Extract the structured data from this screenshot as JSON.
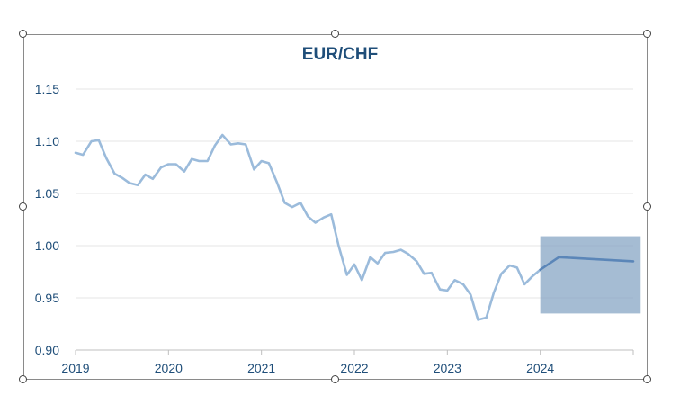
{
  "chart_data": {
    "type": "line",
    "title": "EUR/CHF",
    "xlabel": "",
    "ylabel": "",
    "x_ticks": [
      "2019",
      "2020",
      "2021",
      "2022",
      "2023",
      "2024"
    ],
    "y_ticks": [
      "0.90",
      "0.95",
      "1.00",
      "1.05",
      "1.10",
      "1.15"
    ],
    "xlim": [
      2019.0,
      2025.0
    ],
    "ylim": [
      0.9,
      1.15
    ],
    "grid": true,
    "colors": {
      "history_line": "#9bbbdb",
      "forecast_line": "#5b86b8",
      "forecast_box": "#7f9fc1",
      "axis_text": "#1f4e79",
      "grid": "#e6e6e6"
    },
    "series": [
      {
        "role": "history",
        "x": [
          2019.0,
          2019.08,
          2019.17,
          2019.25,
          2019.33,
          2019.42,
          2019.5,
          2019.58,
          2019.67,
          2019.75,
          2019.83,
          2019.92,
          2020.0,
          2020.08,
          2020.17,
          2020.25,
          2020.33,
          2020.42,
          2020.5,
          2020.58,
          2020.67,
          2020.75,
          2020.83,
          2020.92,
          2021.0,
          2021.08,
          2021.17,
          2021.25,
          2021.33,
          2021.42,
          2021.5,
          2021.58,
          2021.67,
          2021.75,
          2021.83,
          2021.92,
          2022.0,
          2022.08,
          2022.17,
          2022.25,
          2022.33,
          2022.42,
          2022.5,
          2022.58,
          2022.67,
          2022.75,
          2022.83,
          2022.92,
          2023.0,
          2023.08,
          2023.17,
          2023.25,
          2023.33,
          2023.42,
          2023.5,
          2023.58,
          2023.67,
          2023.75,
          2023.83,
          2023.92,
          2024.0
        ],
        "values": [
          1.089,
          1.087,
          1.1,
          1.101,
          1.084,
          1.069,
          1.065,
          1.06,
          1.058,
          1.068,
          1.064,
          1.075,
          1.078,
          1.078,
          1.071,
          1.083,
          1.081,
          1.081,
          1.096,
          1.106,
          1.097,
          1.098,
          1.097,
          1.073,
          1.081,
          1.079,
          1.06,
          1.041,
          1.037,
          1.041,
          1.028,
          1.022,
          1.027,
          1.03,
          1.0,
          0.972,
          0.982,
          0.967,
          0.989,
          0.983,
          0.993,
          0.994,
          0.996,
          0.992,
          0.985,
          0.973,
          0.974,
          0.958,
          0.957,
          0.967,
          0.963,
          0.953,
          0.929,
          0.931,
          0.955,
          0.973,
          0.981,
          0.979,
          0.963,
          0.971,
          0.977
        ]
      },
      {
        "role": "forecast",
        "x": [
          2024.0,
          2024.2,
          2025.0
        ],
        "values": [
          0.977,
          0.989,
          0.985
        ]
      }
    ],
    "forecast_range": {
      "x": [
        2024.0,
        2025.08
      ],
      "y": [
        0.935,
        1.009
      ]
    }
  }
}
